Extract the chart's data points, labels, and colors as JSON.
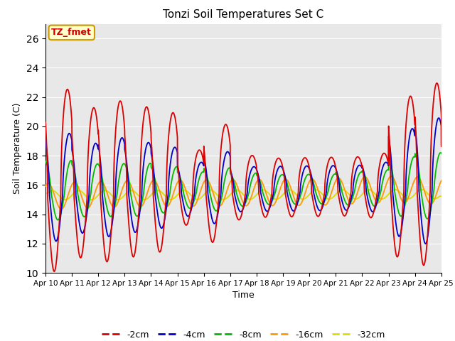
{
  "title": "Tonzi Soil Temperatures Set C",
  "xlabel": "Time",
  "ylabel": "Soil Temperature (C)",
  "ylim": [
    10,
    27
  ],
  "yticks": [
    10,
    12,
    14,
    16,
    18,
    20,
    22,
    24,
    26
  ],
  "annotation_text": "TZ_fmet",
  "annotation_color": "#cc0000",
  "annotation_bg": "#ffffcc",
  "annotation_border": "#cc9900",
  "bg_color": "#e8e8e8",
  "line_colors": {
    "-2cm": "#dd0000",
    "-4cm": "#0000cc",
    "-8cm": "#00bb00",
    "-16cm": "#ff9900",
    "-32cm": "#dddd00"
  },
  "legend_labels": [
    "-2cm",
    "-4cm",
    "-8cm",
    "-16cm",
    "-32cm"
  ],
  "x_tick_labels": [
    "Apr 10",
    "Apr 11",
    "Apr 12",
    "Apr 13",
    "Apr 14",
    "Apr 15",
    "Apr 16",
    "Apr 17",
    "Apr 18",
    "Apr 19",
    "Apr 20",
    "Apr 21",
    "Apr 22",
    "Apr 23",
    "Apr 24",
    "Apr 25"
  ]
}
